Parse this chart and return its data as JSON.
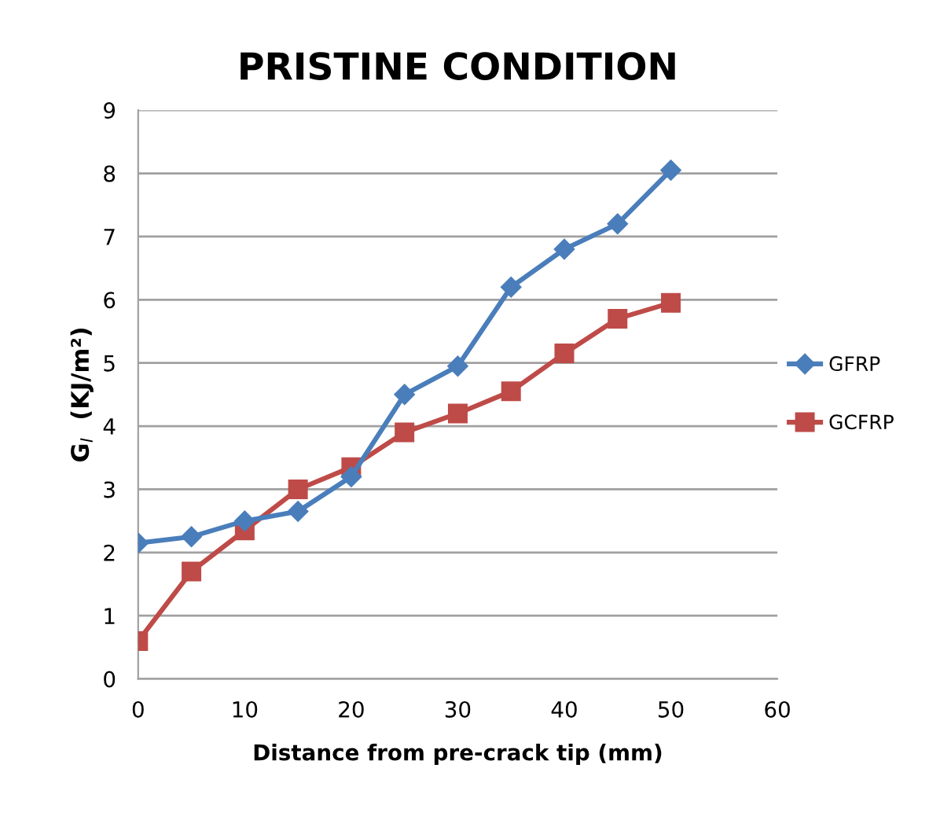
{
  "chart_data": {
    "type": "line",
    "title": "PRISTINE CONDITION",
    "xlabel": "Distance from pre-crack tip (mm)",
    "ylabel": "G$_{I}$  (KJ/m²)",
    "x": [
      0,
      5,
      10,
      15,
      20,
      25,
      30,
      35,
      40,
      45,
      50
    ],
    "series": [
      {
        "name": "GFRP",
        "color": "#4a7ebb",
        "marker": "diamond",
        "values": [
          2.15,
          2.25,
          2.5,
          2.65,
          3.2,
          4.5,
          4.95,
          6.2,
          6.8,
          7.2,
          8.05
        ]
      },
      {
        "name": "GCFRP",
        "color": "#be4b48",
        "marker": "square",
        "values": [
          0.6,
          1.7,
          2.35,
          3.0,
          3.35,
          3.9,
          4.2,
          4.55,
          5.15,
          5.7,
          5.95
        ]
      }
    ],
    "xlim": [
      0,
      60
    ],
    "xticks": [
      0,
      10,
      20,
      30,
      40,
      50,
      60
    ],
    "ylim": [
      0,
      9
    ],
    "yticks": [
      0,
      1,
      2,
      3,
      4,
      5,
      6,
      7,
      8,
      9
    ],
    "grid": "y",
    "legend": "right",
    "line_style": "solid"
  }
}
